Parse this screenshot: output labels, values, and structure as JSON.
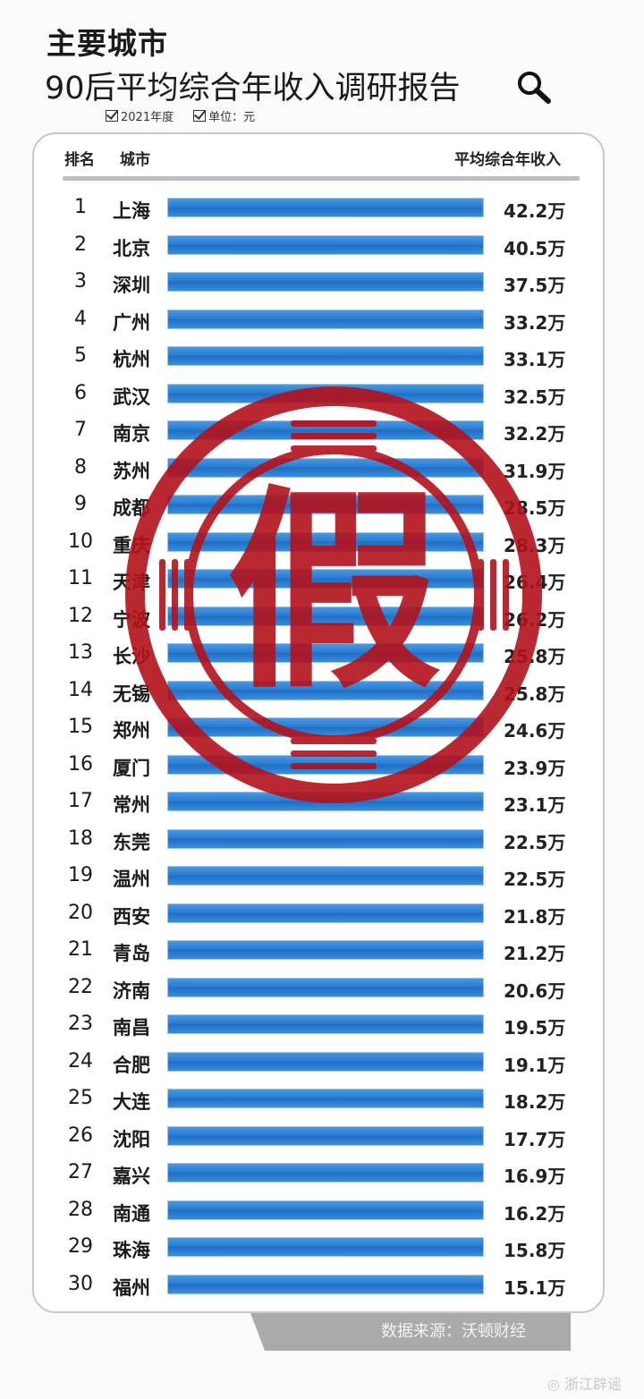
{
  "header": {
    "title": "主要城市",
    "subtitle": "90后平均综合年收入调研报告",
    "search_icon": "magnifier-icon",
    "year_label": "2021年度",
    "unit_label": "单位：元"
  },
  "table": {
    "col_rank": "排名",
    "col_city": "城市",
    "col_income": "平均综合年收入"
  },
  "chart_data": {
    "type": "bar",
    "title": "90后平均综合年收入调研报告",
    "bar_color": "#2a7dd4",
    "categories": [
      "上海",
      "北京",
      "深圳",
      "广州",
      "杭州",
      "武汉",
      "南京",
      "苏州",
      "成都",
      "重庆",
      "天津",
      "宁波",
      "长沙",
      "无锡",
      "郑州",
      "厦门",
      "常州",
      "东莞",
      "温州",
      "西安",
      "青岛",
      "济南",
      "南昌",
      "合肥",
      "大连",
      "沈阳",
      "嘉兴",
      "南通",
      "珠海",
      "福州"
    ],
    "ranks": [
      "1",
      "2",
      "3",
      "4",
      "5",
      "6",
      "7",
      "8",
      "9",
      "10",
      "11",
      "12",
      "13",
      "14",
      "15",
      "16",
      "17",
      "18",
      "19",
      "20",
      "21",
      "22",
      "23",
      "24",
      "25",
      "26",
      "27",
      "28",
      "29",
      "30"
    ],
    "value_labels": [
      "42.2万",
      "40.5万",
      "37.5万",
      "33.2万",
      "33.1万",
      "32.5万",
      "32.2万",
      "31.9万",
      "28.5万",
      "28.3万",
      "26.4万",
      "26.2万",
      "25.8万",
      "25.8万",
      "24.6万",
      "23.9万",
      "23.1万",
      "22.5万",
      "22.5万",
      "21.8万",
      "21.2万",
      "20.6万",
      "19.5万",
      "19.1万",
      "18.2万",
      "17.7万",
      "16.9万",
      "16.2万",
      "15.8万",
      "15.1万"
    ],
    "values": [
      42.2,
      40.5,
      37.5,
      33.2,
      33.1,
      32.5,
      32.2,
      31.9,
      28.5,
      28.3,
      26.4,
      26.2,
      25.8,
      25.8,
      24.6,
      23.9,
      23.1,
      22.5,
      22.5,
      21.8,
      21.2,
      20.6,
      19.5,
      19.1,
      18.2,
      17.7,
      16.9,
      16.2,
      15.8,
      15.1
    ]
  },
  "footer": {
    "source": "数据来源：沃顿财经",
    "watermark": "@浙江辟谣"
  },
  "stamp": {
    "char": "假",
    "color": "#b3121c"
  }
}
